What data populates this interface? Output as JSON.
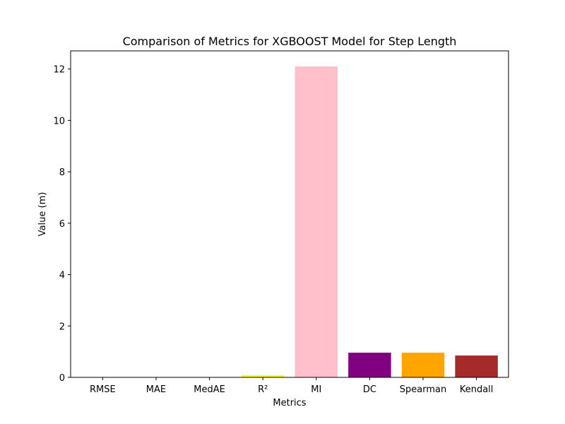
{
  "chart_data": {
    "type": "bar",
    "title": "Comparison of Metrics for XGBOOST Model for Step Length",
    "xlabel": "Metrics",
    "ylabel": "Value (m)",
    "categories": [
      "RMSE",
      "MAE",
      "MedAE",
      "R²",
      "MI",
      "DC",
      "Spearman",
      "Kendall"
    ],
    "values": [
      0.01,
      0.01,
      0.005,
      0.08,
      12.1,
      0.96,
      0.96,
      0.85
    ],
    "colors": [
      "#0000ff",
      "#008000",
      "#ff0000",
      "#ffff00",
      "#ffc0cb",
      "#800080",
      "#ffa500",
      "#a52a2a"
    ],
    "ylim": [
      0,
      12.705
    ],
    "yticks": [
      0,
      2,
      4,
      6,
      8,
      10,
      12
    ],
    "grid": false,
    "legend": "none"
  }
}
